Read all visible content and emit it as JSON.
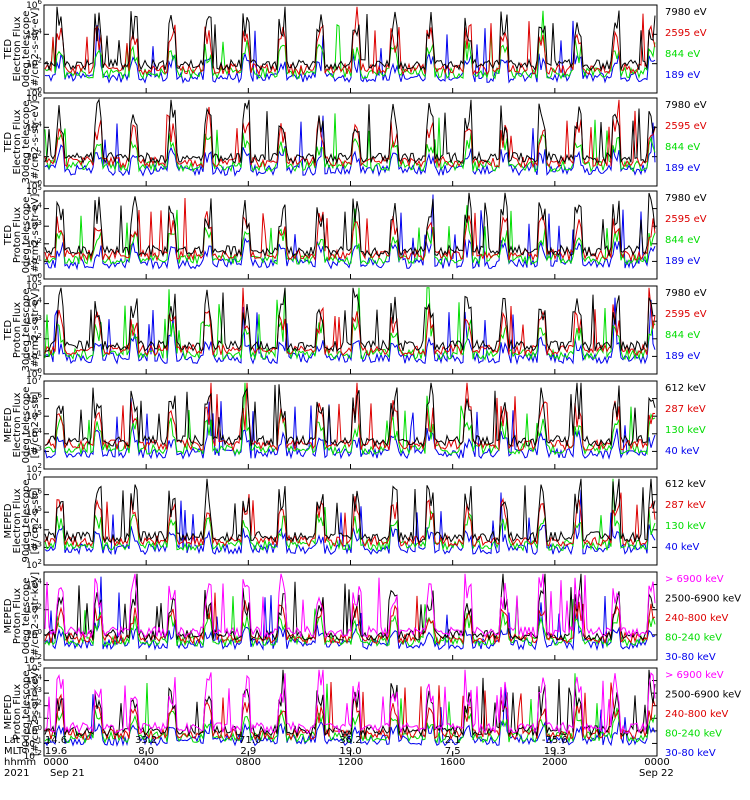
{
  "colors": {
    "black": "#000000",
    "red": "#dd0000",
    "green": "#00dd00",
    "blue": "#0000ee",
    "magenta": "#ff00ff"
  },
  "chart_data": [
    {
      "type": "line",
      "title_lines": [
        "TED",
        "Electron Flux",
        "0deg telescope",
        "[#/cm2-s-str-eV]"
      ],
      "ylog": true,
      "ylim_exp": [
        0,
        6
      ],
      "yticks_exp": [
        0,
        2,
        4,
        6
      ],
      "series": [
        {
          "name": "7980 eV",
          "color": "#000000"
        },
        {
          "name": "2595 eV",
          "color": "#dd0000"
        },
        {
          "name": "844 eV",
          "color": "#00dd00"
        },
        {
          "name": "189 eV",
          "color": "#0000ee"
        }
      ]
    },
    {
      "type": "line",
      "title_lines": [
        "TED",
        "Electron Flux",
        "30deg telescope",
        "[#/cm2-s-str-eV]"
      ],
      "ylog": true,
      "ylim_exp": [
        0,
        6
      ],
      "yticks_exp": [
        0,
        2,
        4,
        6
      ],
      "series": [
        {
          "name": "7980 eV",
          "color": "#000000"
        },
        {
          "name": "2595 eV",
          "color": "#dd0000"
        },
        {
          "name": "844 eV",
          "color": "#00dd00"
        },
        {
          "name": "189 eV",
          "color": "#0000ee"
        }
      ]
    },
    {
      "type": "line",
      "title_lines": [
        "TED",
        "Proton Flux",
        "0deg telescope",
        "[#/cm2-s-str-eV]"
      ],
      "ylog": true,
      "ylim_exp": [
        0,
        5
      ],
      "yticks_exp": [
        0,
        1,
        2,
        3,
        4,
        5
      ],
      "series": [
        {
          "name": "7980 eV",
          "color": "#000000"
        },
        {
          "name": "2595 eV",
          "color": "#dd0000"
        },
        {
          "name": "844 eV",
          "color": "#00dd00"
        },
        {
          "name": "189 eV",
          "color": "#0000ee"
        }
      ]
    },
    {
      "type": "line",
      "title_lines": [
        "TED",
        "Proton Flux",
        "30deg telescope",
        "[#/cm2-s-str-eV]"
      ],
      "ylog": true,
      "ylim_exp": [
        0,
        5
      ],
      "yticks_exp": [
        0,
        1,
        2,
        3,
        4,
        5
      ],
      "series": [
        {
          "name": "7980 eV",
          "color": "#000000"
        },
        {
          "name": "2595 eV",
          "color": "#dd0000"
        },
        {
          "name": "844 eV",
          "color": "#00dd00"
        },
        {
          "name": "189 eV",
          "color": "#0000ee"
        }
      ]
    },
    {
      "type": "line",
      "title_lines": [
        "MEPED",
        "Electron Flux",
        "0deg telescope",
        "[#/cm2-s-str]"
      ],
      "ylog": true,
      "ylim_exp": [
        2,
        7
      ],
      "yticks_exp": [
        2,
        3,
        4,
        5,
        6,
        7
      ],
      "series": [
        {
          "name": "612 keV",
          "color": "#000000"
        },
        {
          "name": "287 keV",
          "color": "#dd0000"
        },
        {
          "name": "130 keV",
          "color": "#00dd00"
        },
        {
          "name": "40 keV",
          "color": "#0000ee"
        }
      ]
    },
    {
      "type": "line",
      "title_lines": [
        "MEPED",
        "Electron Flux",
        "90deg telescope",
        "[#/cm2-s-str]"
      ],
      "ylog": true,
      "ylim_exp": [
        2,
        7
      ],
      "yticks_exp": [
        2,
        3,
        4,
        5,
        6,
        7
      ],
      "series": [
        {
          "name": "612 keV",
          "color": "#000000"
        },
        {
          "name": "287 keV",
          "color": "#dd0000"
        },
        {
          "name": "130 keV",
          "color": "#00dd00"
        },
        {
          "name": "40 keV",
          "color": "#0000ee"
        }
      ]
    },
    {
      "type": "line",
      "title_lines": [
        "MEPED",
        "Proton Flux",
        "0deg telescope",
        "[#/cm2-s-str-keV]"
      ],
      "ylog": true,
      "ylim_exp": [
        -2,
        5
      ],
      "yticks_exp": [
        -2,
        0,
        2,
        4
      ],
      "series": [
        {
          "name": "> 6900 keV",
          "color": "#ff00ff"
        },
        {
          "name": "2500-6900 keV",
          "color": "#000000"
        },
        {
          "name": "240-800 keV",
          "color": "#dd0000"
        },
        {
          "name": "80-240 keV",
          "color": "#00dd00"
        },
        {
          "name": "30-80 keV",
          "color": "#0000ee"
        }
      ]
    },
    {
      "type": "line",
      "title_lines": [
        "MEPED",
        "Proton Flux",
        "90deg telescope",
        "[#/cm2-s-str-keV]"
      ],
      "ylog": true,
      "ylim_exp": [
        -2,
        5
      ],
      "yticks_exp": [
        -2,
        -1,
        0,
        1,
        2,
        3,
        4,
        5
      ],
      "series": [
        {
          "name": "> 6900 keV",
          "color": "#ff00ff"
        },
        {
          "name": "2500-6900 keV",
          "color": "#000000"
        },
        {
          "name": "240-800 keV",
          "color": "#dd0000"
        },
        {
          "name": "80-240 keV",
          "color": "#00dd00"
        },
        {
          "name": "30-80 keV",
          "color": "#0000ee"
        }
      ]
    }
  ],
  "footer": {
    "row_labels": [
      "Lat",
      "MLT",
      "hhmm",
      "2021"
    ],
    "lat": [
      "14.6",
      "33.2",
      "-71.0",
      "36.2",
      "2.1",
      "-35.6"
    ],
    "mlt": [
      "19.6",
      "8.0",
      "2.9",
      "19.0",
      "7.5",
      "19.3"
    ],
    "hhmm": [
      "0000",
      "0400",
      "0800",
      "1200",
      "1600",
      "2000",
      "0000"
    ],
    "date_start": "Sep 21",
    "date_end": "Sep 22"
  }
}
